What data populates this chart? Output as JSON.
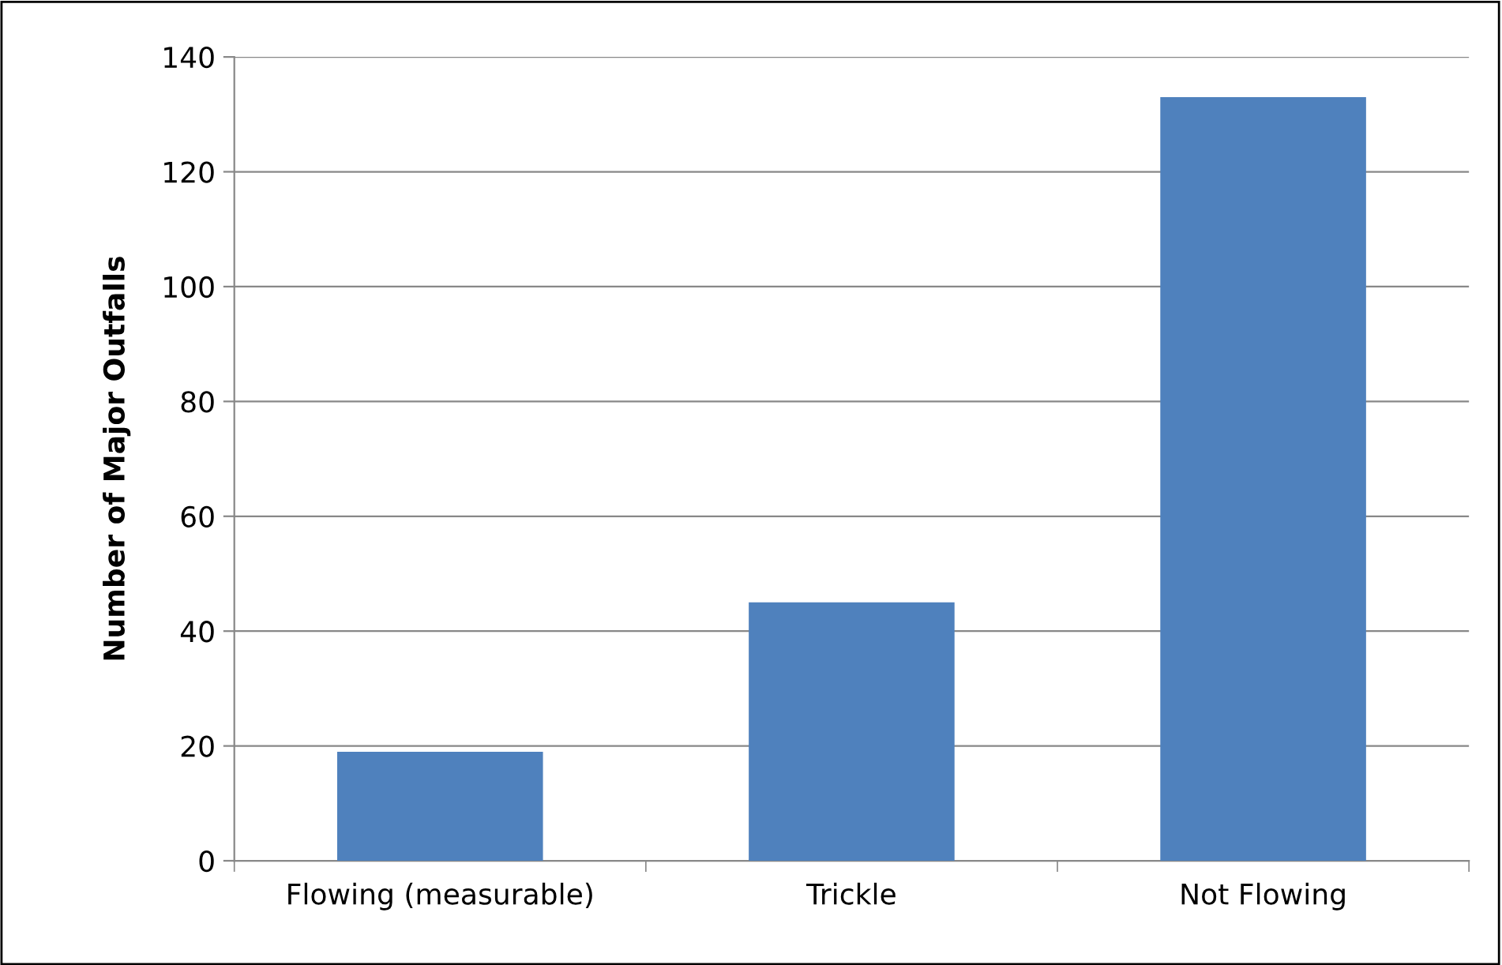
{
  "chart_data": {
    "type": "bar",
    "ylabel": "Number of Major Outfalls",
    "categories": [
      "Flowing (measurable)",
      "Trickle",
      "Not Flowing"
    ],
    "values": [
      19,
      45,
      133
    ],
    "color": "#4f81bd",
    "ylim": [
      0,
      140
    ],
    "yticks": [
      0,
      20,
      40,
      60,
      80,
      100,
      120,
      140
    ],
    "grid": "y"
  }
}
